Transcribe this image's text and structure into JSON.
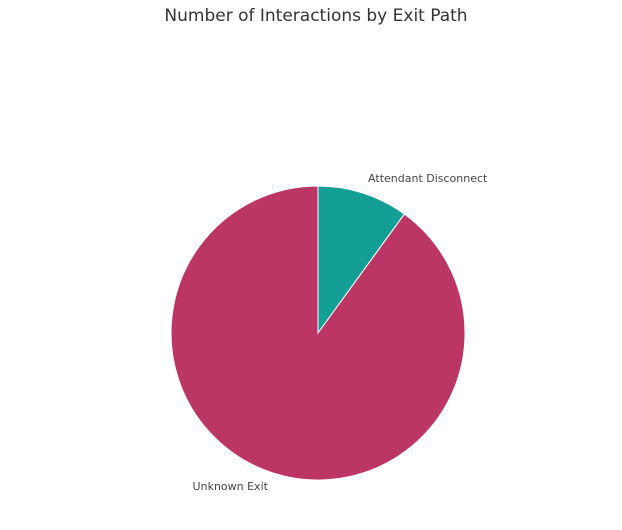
{
  "chart_data": {
    "type": "pie",
    "title": "Number of Interactions by Exit Path",
    "categories": [
      "Attendant Disconnect",
      "Unknown Exit"
    ],
    "values": [
      10,
      90
    ],
    "colors": [
      "#139e96",
      "#bb3665"
    ]
  }
}
